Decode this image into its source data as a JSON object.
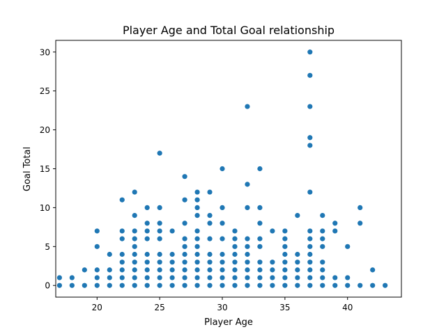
{
  "chart_data": {
    "type": "scatter",
    "title": "Player Age and Total Goal relationship",
    "xlabel": "Player Age",
    "ylabel": "Goal Total",
    "xlim": [
      16.7,
      44.3
    ],
    "ylim": [
      -1.5,
      31.5
    ],
    "xticks": [
      20,
      25,
      30,
      35,
      40
    ],
    "yticks": [
      0,
      5,
      10,
      15,
      20,
      25,
      30
    ],
    "grid": false,
    "color": "#1f77b4",
    "points": [
      [
        17,
        0
      ],
      [
        17,
        1
      ],
      [
        18,
        0
      ],
      [
        18,
        1
      ],
      [
        19,
        0
      ],
      [
        19,
        2
      ],
      [
        20,
        0
      ],
      [
        20,
        1
      ],
      [
        20,
        2
      ],
      [
        20,
        5
      ],
      [
        20,
        7
      ],
      [
        21,
        0
      ],
      [
        21,
        1
      ],
      [
        21,
        2
      ],
      [
        21,
        4
      ],
      [
        22,
        0
      ],
      [
        22,
        1
      ],
      [
        22,
        2
      ],
      [
        22,
        3
      ],
      [
        22,
        4
      ],
      [
        22,
        6
      ],
      [
        22,
        7
      ],
      [
        22,
        11
      ],
      [
        23,
        0
      ],
      [
        23,
        1
      ],
      [
        23,
        2
      ],
      [
        23,
        3
      ],
      [
        23,
        4
      ],
      [
        23,
        5
      ],
      [
        23,
        6
      ],
      [
        23,
        7
      ],
      [
        23,
        9
      ],
      [
        23,
        12
      ],
      [
        24,
        0
      ],
      [
        24,
        1
      ],
      [
        24,
        2
      ],
      [
        24,
        3
      ],
      [
        24,
        4
      ],
      [
        24,
        6
      ],
      [
        24,
        7
      ],
      [
        24,
        8
      ],
      [
        24,
        10
      ],
      [
        25,
        0
      ],
      [
        25,
        1
      ],
      [
        25,
        2
      ],
      [
        25,
        3
      ],
      [
        25,
        4
      ],
      [
        25,
        6
      ],
      [
        25,
        7
      ],
      [
        25,
        8
      ],
      [
        25,
        10
      ],
      [
        25,
        17
      ],
      [
        26,
        0
      ],
      [
        26,
        1
      ],
      [
        26,
        2
      ],
      [
        26,
        3
      ],
      [
        26,
        4
      ],
      [
        26,
        7
      ],
      [
        27,
        0
      ],
      [
        27,
        1
      ],
      [
        27,
        2
      ],
      [
        27,
        3
      ],
      [
        27,
        4
      ],
      [
        27,
        5
      ],
      [
        27,
        6
      ],
      [
        27,
        8
      ],
      [
        27,
        11
      ],
      [
        27,
        14
      ],
      [
        28,
        0
      ],
      [
        28,
        1
      ],
      [
        28,
        2
      ],
      [
        28,
        3
      ],
      [
        28,
        4
      ],
      [
        28,
        5
      ],
      [
        28,
        6
      ],
      [
        28,
        7
      ],
      [
        28,
        9
      ],
      [
        28,
        10
      ],
      [
        28,
        11
      ],
      [
        28,
        12
      ],
      [
        29,
        0
      ],
      [
        29,
        1
      ],
      [
        29,
        2
      ],
      [
        29,
        3
      ],
      [
        29,
        4
      ],
      [
        29,
        6
      ],
      [
        29,
        8
      ],
      [
        29,
        9
      ],
      [
        29,
        12
      ],
      [
        30,
        0
      ],
      [
        30,
        1
      ],
      [
        30,
        2
      ],
      [
        30,
        3
      ],
      [
        30,
        4
      ],
      [
        30,
        6
      ],
      [
        30,
        8
      ],
      [
        30,
        10
      ],
      [
        30,
        15
      ],
      [
        31,
        0
      ],
      [
        31,
        1
      ],
      [
        31,
        2
      ],
      [
        31,
        3
      ],
      [
        31,
        4
      ],
      [
        31,
        5
      ],
      [
        31,
        6
      ],
      [
        31,
        7
      ],
      [
        32,
        0
      ],
      [
        32,
        1
      ],
      [
        32,
        2
      ],
      [
        32,
        3
      ],
      [
        32,
        4
      ],
      [
        32,
        5
      ],
      [
        32,
        6
      ],
      [
        32,
        10
      ],
      [
        32,
        13
      ],
      [
        32,
        23
      ],
      [
        33,
        0
      ],
      [
        33,
        1
      ],
      [
        33,
        2
      ],
      [
        33,
        3
      ],
      [
        33,
        5
      ],
      [
        33,
        6
      ],
      [
        33,
        8
      ],
      [
        33,
        10
      ],
      [
        33,
        15
      ],
      [
        34,
        0
      ],
      [
        34,
        1
      ],
      [
        34,
        2
      ],
      [
        34,
        3
      ],
      [
        34,
        7
      ],
      [
        35,
        0
      ],
      [
        35,
        1
      ],
      [
        35,
        2
      ],
      [
        35,
        3
      ],
      [
        35,
        4
      ],
      [
        35,
        5
      ],
      [
        35,
        6
      ],
      [
        35,
        7
      ],
      [
        36,
        0
      ],
      [
        36,
        1
      ],
      [
        36,
        2
      ],
      [
        36,
        3
      ],
      [
        36,
        4
      ],
      [
        36,
        9
      ],
      [
        37,
        0
      ],
      [
        37,
        1
      ],
      [
        37,
        2
      ],
      [
        37,
        3
      ],
      [
        37,
        4
      ],
      [
        37,
        5
      ],
      [
        37,
        6
      ],
      [
        37,
        7
      ],
      [
        37,
        12
      ],
      [
        37,
        18
      ],
      [
        37,
        19
      ],
      [
        37,
        23
      ],
      [
        37,
        27
      ],
      [
        37,
        30
      ],
      [
        38,
        0
      ],
      [
        38,
        1
      ],
      [
        38,
        2
      ],
      [
        38,
        3
      ],
      [
        38,
        5
      ],
      [
        38,
        6
      ],
      [
        38,
        7
      ],
      [
        38,
        9
      ],
      [
        39,
        0
      ],
      [
        39,
        1
      ],
      [
        39,
        7
      ],
      [
        39,
        8
      ],
      [
        40,
        0
      ],
      [
        40,
        1
      ],
      [
        40,
        5
      ],
      [
        41,
        0
      ],
      [
        41,
        8
      ],
      [
        41,
        10
      ],
      [
        42,
        0
      ],
      [
        42,
        2
      ],
      [
        43,
        0
      ]
    ]
  }
}
